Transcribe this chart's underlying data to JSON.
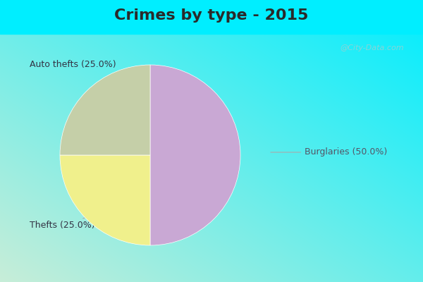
{
  "title": "Crimes by type - 2015",
  "slices": [
    {
      "label": "Burglaries (50.0%)",
      "value": 50.0,
      "color": "#C9A8D4"
    },
    {
      "label": "Auto thefts (25.0%)",
      "value": 25.0,
      "color": "#F0F08C"
    },
    {
      "label": "Thefts (25.0%)",
      "value": 25.0,
      "color": "#C5CFA8"
    }
  ],
  "bg_top_color": "#00EEFF",
  "bg_bottom_color": "#C8EDD8",
  "title_fontsize": 16,
  "label_fontsize": 9,
  "watermark": "@City-Data.com",
  "title_color": "#2a2a2a"
}
